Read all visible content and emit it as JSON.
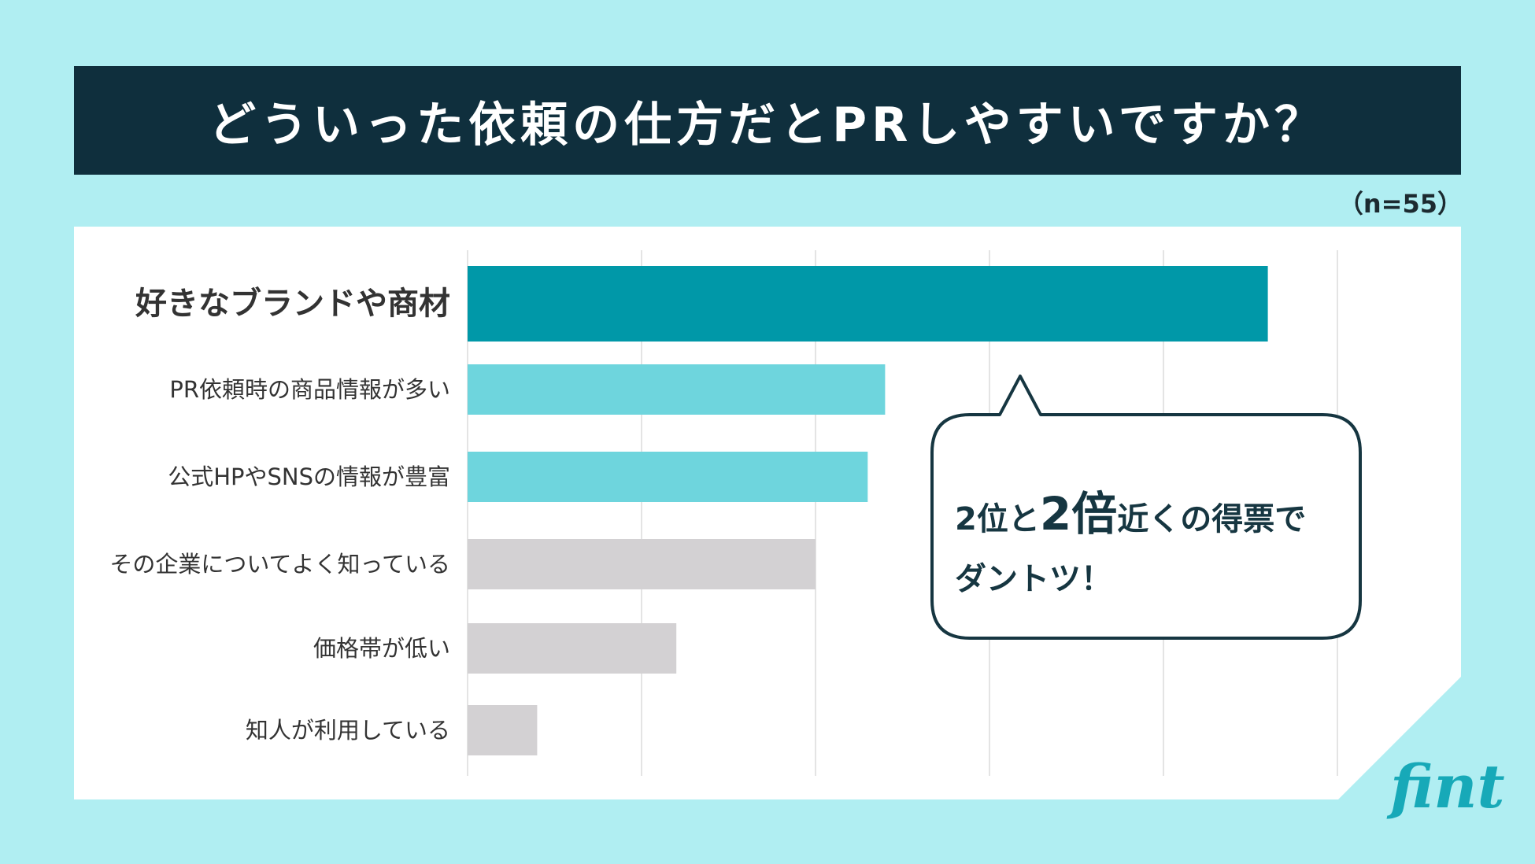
{
  "title": "どういった依頼の仕方だとPRしやすいですか？",
  "sample_note": "（n=55）",
  "callout": {
    "pre": "2位と",
    "emphasis": "2倍",
    "post": "近くの得票で",
    "line2": "ダントツ！"
  },
  "logo_text": "fint",
  "colors": {
    "background": "#b0eef2",
    "title_bar": "#0f2f3d",
    "bar_top": "#0098a8",
    "bar_light": "#6ed5dd",
    "bar_gray": "#d3d1d3",
    "callout_text": "#163641"
  },
  "chart_data": {
    "type": "bar",
    "orientation": "horizontal",
    "title": "どういった依頼の仕方だとPRしやすいですか？",
    "categories": [
      "好きなブランドや商材",
      "PR依頼時の商品情報が多い",
      "公式HPやSNSの情報が豊富",
      "その企業についてよく知っている",
      "価格帯が低い",
      "知人が利用している"
    ],
    "values": [
      46,
      24,
      23,
      20,
      12,
      4
    ],
    "bar_colors": [
      "#0098a8",
      "#6ed5dd",
      "#6ed5dd",
      "#d3d1d3",
      "#d3d1d3",
      "#d3d1d3"
    ],
    "xlim": [
      0,
      50
    ],
    "x_gridlines": [
      10,
      20,
      30,
      40,
      50
    ],
    "grid": true,
    "tick_labels_shown": false,
    "highlight_index": 0
  }
}
